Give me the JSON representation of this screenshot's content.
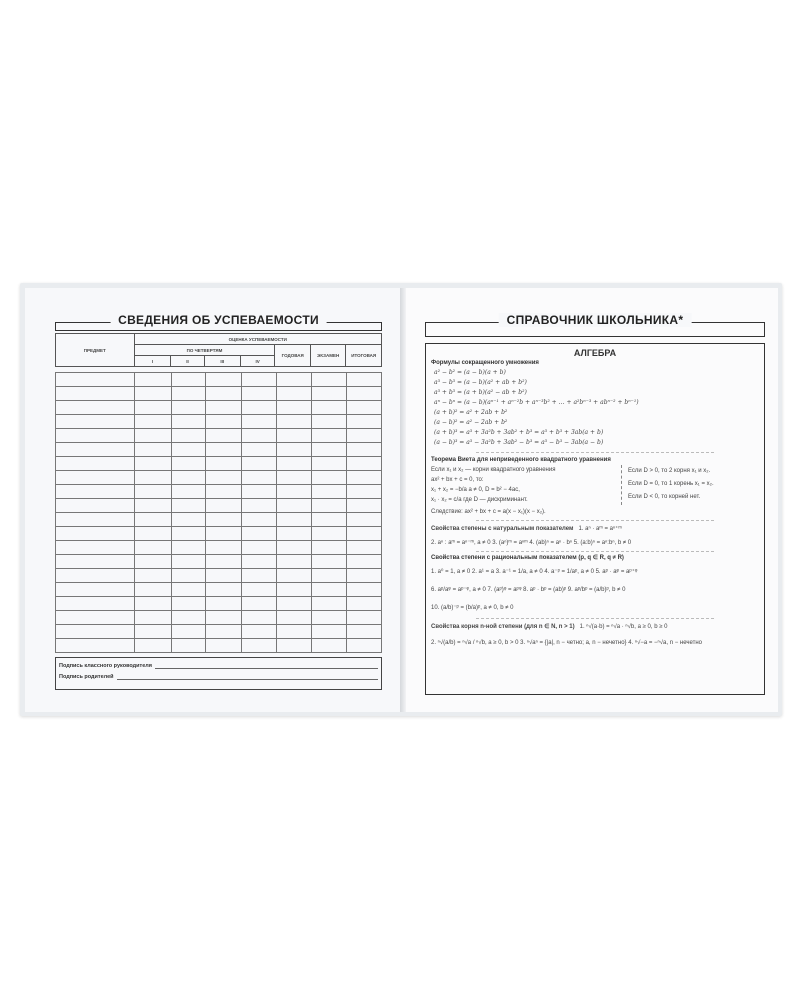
{
  "left": {
    "title": "СВЕДЕНИЯ ОБ УСПЕВАЕМОСТИ",
    "subject_header": "ПРЕДМЕТ",
    "grades_header": "ОЦЕНКА УСПЕВАЕМОСТИ",
    "quarters_header": "ПО ЧЕТВЕРТЯМ",
    "quarters": [
      "I",
      "II",
      "III",
      "IV"
    ],
    "annual": "ГОДОВАЯ",
    "exam": "ЭКЗАМЕН",
    "final": "ИТОГОВАЯ",
    "signature_teacher": "Подпись классного руководителя",
    "signature_parents": "Подпись родителей"
  },
  "right": {
    "title": "СПРАВОЧНИК ШКОЛЬНИКА*",
    "section": "АЛГЕБРА",
    "abbr_title": "Формулы сокращенного умножения",
    "abbr": [
      "a² − b² = (a − b)(a + b)",
      "a³ − b³ = (a − b)(a² + ab + b²)",
      "a³ + b³ = (a + b)(a² − ab + b²)",
      "aⁿ − bⁿ = (a − b)(aⁿ⁻¹ + aⁿ⁻²b + aⁿ⁻³b² + … + a²bⁿ⁻³ + abⁿ⁻² + bⁿ⁻¹)",
      "(a + b)² = a² + 2ab + b²",
      "(a − b)² = a² − 2ab + b²",
      "(a + b)³ = a³ + 3a²b + 3ab² + b³ = a³ + b³ + 3ab(a + b)",
      "(a − b)³ = a³ − 3a²b + 3ab² − b³ = a³ − b³ − 3ab(a − b)"
    ],
    "vieta_title": "Теорема Виета для неприведенного квадратного уравнения",
    "vieta_left": [
      "Если x₁ и x₂ — корни квадратного уравнения",
      "ax² + bx + c = 0, то:",
      "x₁ + x₂ = −b/a      a ≠ 0,  D = b² − 4ac,",
      "x₁ · x₂ = c/a       где D — дискриминант."
    ],
    "vieta_right": [
      "Если D > 0, то 2 корня x₁ и x₂.",
      "Если D = 0, то 1 корень x₁ = x₂.",
      "Если D < 0, то корней нет."
    ],
    "vieta_corollary": "Следствие:  ax² + bx + c = a(x − x₁)(x − x₂).",
    "nat_title": "Свойства степены с натуральным показателем",
    "nat": [
      "1. aⁿ · aᵐ = aⁿ⁺ᵐ",
      "2. aⁿ : aᵐ = aⁿ⁻ᵐ, a ≠ 0   3. (aⁿ)ᵐ = aⁿᵐ   4. (ab)ⁿ = aⁿ · bⁿ   5. (a:b)ⁿ = aⁿ:bⁿ, b ≠ 0"
    ],
    "rat_title": "Свойства степени с рациональным показателем (p, q ∈ R, q ≠ R)",
    "rat": [
      "1. a⁰ = 1, a ≠ 0   2. a¹ = a   3. a⁻¹ = 1/a, a ≠ 0   4. a⁻ᵖ = 1/aᵖ, a ≠ 0   5. aᵖ · aᵠ = aᵖ⁺ᵠ",
      "6. aᵖ/aᵠ = aᵖ⁻ᵠ, a ≠ 0   7. (aᵖ)ᵠ = aᵖᵠ   8. aᵖ · bᵖ = (ab)ᵖ   9. aᵖ/bᵖ = (a/b)ᵖ, b ≠ 0",
      "10. (a/b)⁻ᵖ = (b/a)ᵖ, a ≠ 0, b ≠ 0"
    ],
    "root_title": "Свойства корня n-ной степени (для n ∈ N, n > 1)",
    "root": [
      "1. ⁿ√(a·b) = ⁿ√a · ⁿ√b, a ≥ 0, b ≥ 0",
      "2. ⁿ√(a/b) = ⁿ√a / ⁿ√b, a ≥ 0, b > 0   3. ⁿ√aⁿ = {|a|, n − четно; a, n − нечетно}   4. ⁿ√−a = −ⁿ√a, n − нечетно"
    ]
  }
}
